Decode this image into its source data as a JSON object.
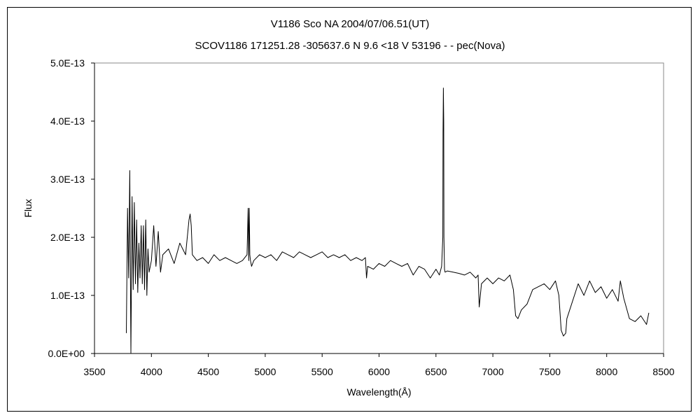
{
  "chart_data": {
    "type": "line",
    "title": "V1186 Sco    NA    2004/07/06.51(UT)",
    "subtitle": "SCOV1186 171251.28 -305637.6 N 9.6 <18 V 53196 - - pec(Nova)",
    "xlabel": "Wavelength(Å)",
    "ylabel": "Flux",
    "xlim": [
      3500,
      8500
    ],
    "ylim": [
      0,
      5e-13
    ],
    "x_ticks": [
      3500,
      4000,
      4500,
      5000,
      5500,
      6000,
      6500,
      7000,
      7500,
      8000,
      8500
    ],
    "x_tick_labels": [
      "3500",
      "4000",
      "4500",
      "5000",
      "5500",
      "6000",
      "6500",
      "7000",
      "7500",
      "8000",
      "8500"
    ],
    "y_ticks": [
      0,
      1e-13,
      2e-13,
      3e-13,
      4e-13,
      5e-13
    ],
    "y_tick_labels": [
      "0.0E+00",
      "1.0E-13",
      "2.0E-13",
      "3.0E-13",
      "4.0E-13",
      "5.0E-13"
    ],
    "grid": false,
    "legend": "none",
    "line_color": "#000000",
    "series": [
      {
        "x": [
          3780,
          3790,
          3800,
          3810,
          3820,
          3830,
          3840,
          3850,
          3860,
          3870,
          3880,
          3890,
          3900,
          3910,
          3920,
          3930,
          3940,
          3950,
          3960,
          3970,
          3980,
          4000,
          4020,
          4040,
          4060,
          4080,
          4100,
          4150,
          4200,
          4250,
          4300,
          4330,
          4340,
          4350,
          4360,
          4400,
          4450,
          4500,
          4550,
          4600,
          4650,
          4700,
          4750,
          4800,
          4840,
          4850,
          4855,
          4860,
          4865,
          4870,
          4880,
          4900,
          4950,
          5000,
          5050,
          5100,
          5150,
          5200,
          5250,
          5300,
          5350,
          5400,
          5450,
          5500,
          5550,
          5600,
          5650,
          5700,
          5750,
          5800,
          5850,
          5880,
          5890,
          5900,
          5950,
          6000,
          6050,
          6100,
          6150,
          6200,
          6250,
          6300,
          6350,
          6400,
          6450,
          6500,
          6530,
          6550,
          6560,
          6562,
          6565,
          6568,
          6570,
          6575,
          6580,
          6600,
          6650,
          6700,
          6750,
          6800,
          6850,
          6870,
          6880,
          6900,
          6950,
          7000,
          7050,
          7100,
          7150,
          7180,
          7200,
          7220,
          7250,
          7300,
          7350,
          7400,
          7450,
          7500,
          7550,
          7580,
          7600,
          7620,
          7640,
          7650,
          7700,
          7750,
          7800,
          7850,
          7900,
          7950,
          8000,
          8050,
          8100,
          8120,
          8150,
          8200,
          8250,
          8300,
          8350,
          8370
        ],
        "y": [
          3.5e-14,
          2.5e-13,
          1.3e-13,
          3.15e-13,
          1e-15,
          2.7e-13,
          1.1e-13,
          2.6e-13,
          1.2e-13,
          2.3e-13,
          1.05e-13,
          1.9e-13,
          1.3e-13,
          2.2e-13,
          1.2e-13,
          2.2e-13,
          1.1e-13,
          2.3e-13,
          1e-13,
          1.8e-13,
          1.4e-13,
          1.6e-13,
          2.2e-13,
          1.5e-13,
          2.1e-13,
          1.4e-13,
          1.7e-13,
          1.8e-13,
          1.55e-13,
          1.9e-13,
          1.7e-13,
          2.3e-13,
          2.4e-13,
          2.2e-13,
          1.7e-13,
          1.6e-13,
          1.65e-13,
          1.55e-13,
          1.7e-13,
          1.6e-13,
          1.65e-13,
          1.6e-13,
          1.55e-13,
          1.6e-13,
          1.7e-13,
          2.5e-13,
          1.6e-13,
          2.5e-13,
          1.7e-13,
          1.6e-13,
          1.5e-13,
          1.6e-13,
          1.7e-13,
          1.65e-13,
          1.7e-13,
          1.6e-13,
          1.75e-13,
          1.7e-13,
          1.65e-13,
          1.75e-13,
          1.7e-13,
          1.65e-13,
          1.7e-13,
          1.75e-13,
          1.65e-13,
          1.7e-13,
          1.65e-13,
          1.7e-13,
          1.6e-13,
          1.65e-13,
          1.6e-13,
          1.65e-13,
          1.3e-13,
          1.5e-13,
          1.45e-13,
          1.55e-13,
          1.5e-13,
          1.6e-13,
          1.55e-13,
          1.5e-13,
          1.55e-13,
          1.35e-13,
          1.5e-13,
          1.45e-13,
          1.3e-13,
          1.45e-13,
          1.35e-13,
          1.5e-13,
          2e-13,
          3.8e-13,
          4.57e-13,
          4e-13,
          2e-13,
          1.45e-13,
          1.4e-13,
          1.42e-13,
          1.4e-13,
          1.38e-13,
          1.35e-13,
          1.4e-13,
          1.3e-13,
          1.35e-13,
          8e-14,
          1.2e-13,
          1.3e-13,
          1.2e-13,
          1.3e-13,
          1.25e-13,
          1.35e-13,
          1.1e-13,
          6.5e-14,
          6e-14,
          7.5e-14,
          8.5e-14,
          1.1e-13,
          1.15e-13,
          1.2e-13,
          1.1e-13,
          1.25e-13,
          1e-13,
          4e-14,
          3e-14,
          3.5e-14,
          6e-14,
          9e-14,
          1.2e-13,
          1e-13,
          1.25e-13,
          1.05e-13,
          1.15e-13,
          9.5e-14,
          1.1e-13,
          9e-14,
          1.25e-13,
          9.5e-14,
          6e-14,
          5.5e-14,
          6.5e-14,
          5e-14,
          7e-14
        ]
      }
    ]
  }
}
